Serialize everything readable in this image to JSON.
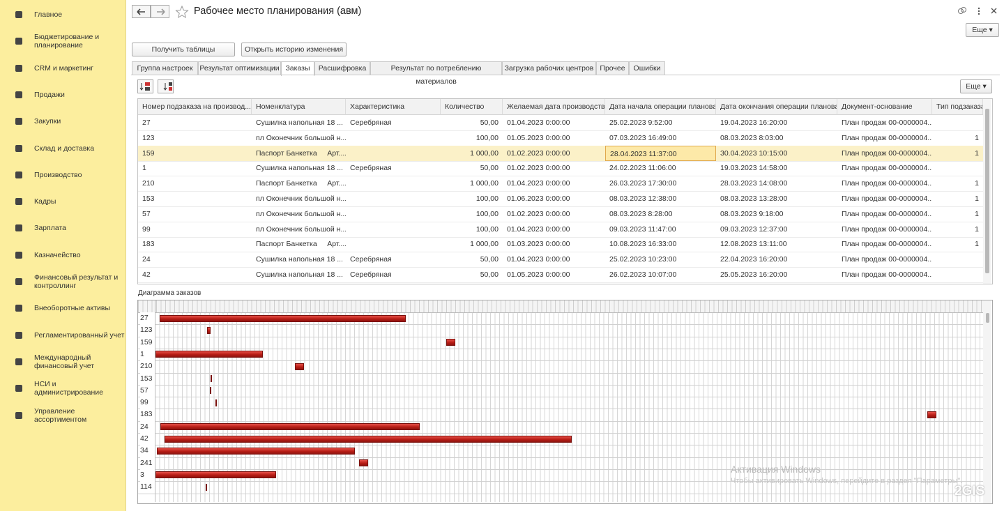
{
  "sidebar": {
    "items": [
      "Главное",
      "Бюджетирование и\nпланирование",
      "CRM и маркетинг",
      "Продажи",
      "Закупки",
      "Склад и доставка",
      "Производство",
      "Кадры",
      "Зарплата",
      "Казначейство",
      "Финансовый результат и\nконтроллинг",
      "Внеоборотные активы",
      "Регламентированный учет",
      "Международный\nфинансовый учет",
      "НСИ и\nадминистрирование",
      "Управление\nассортиментом"
    ]
  },
  "header": {
    "title": "Рабочее место планирования (авм)",
    "more": "Еще"
  },
  "toolbar": {
    "buttons": [
      "Получить таблицы",
      "Открыть историю изменения"
    ]
  },
  "tabs": {
    "items": [
      "Группа настроек",
      "Результат оптимизации",
      "Заказы",
      "Расшифровка",
      "Результат по потреблению материалов",
      "Загрузка рабочих центров",
      "Прочее",
      "Ошибки"
    ],
    "active": 2
  },
  "table": {
    "more": "Еще",
    "columns": [
      "Номер подзаказа на производ...",
      "Номенклатура",
      "Характеристика",
      "Количество",
      "Желаемая дата производства",
      "Дата начала операции плановая",
      "Дата окончания операции плановая",
      "Документ-основание",
      "Тип подзаказа"
    ],
    "selected_row": 2,
    "rows": [
      [
        "27",
        "Сушилка напольная 18 ...",
        "Серебряная",
        "50,00",
        "01.04.2023 0:00:00",
        "25.02.2023 9:52:00",
        "19.04.2023 16:20:00",
        "План продаж 00-0000004...",
        null
      ],
      [
        "123",
        "пл Оконечник большой н...",
        null,
        "100,00",
        "01.05.2023 0:00:00",
        "07.03.2023 16:49:00",
        "08.03.2023 8:03:00",
        "План продаж 00-0000004...",
        "1"
      ],
      [
        "159",
        "Паспорт Банкетка     Арт....",
        null,
        "1 000,00",
        "01.02.2023 0:00:00",
        "28.04.2023 11:37:00",
        "30.04.2023 10:15:00",
        "План продаж 00-0000004...",
        "1"
      ],
      [
        "1",
        "Сушилка напольная 18 ...",
        "Серебряная",
        "50,00",
        "01.02.2023 0:00:00",
        "24.02.2023 11:06:00",
        "19.03.2023 14:58:00",
        "План продаж 00-0000004...",
        null
      ],
      [
        "210",
        "Паспорт Банкетка     Арт....",
        null,
        "1 000,00",
        "01.04.2023 0:00:00",
        "26.03.2023 17:30:00",
        "28.03.2023 14:08:00",
        "План продаж 00-0000004...",
        "1"
      ],
      [
        "153",
        "пл Оконечник большой н...",
        null,
        "100,00",
        "01.06.2023 0:00:00",
        "08.03.2023 12:38:00",
        "08.03.2023 13:28:00",
        "План продаж 00-0000004...",
        "1"
      ],
      [
        "57",
        "пл Оконечник большой н...",
        null,
        "100,00",
        "01.02.2023 0:00:00",
        "08.03.2023 8:28:00",
        "08.03.2023 9:18:00",
        "План продаж 00-0000004...",
        "1"
      ],
      [
        "99",
        "пл Оконечник большой н...",
        null,
        "100,00",
        "01.04.2023 0:00:00",
        "09.03.2023 11:47:00",
        "09.03.2023 12:37:00",
        "План продаж 00-0000004...",
        "1"
      ],
      [
        "183",
        "Паспорт Банкетка     Арт....",
        null,
        "1 000,00",
        "01.03.2023 0:00:00",
        "10.08.2023 16:33:00",
        "12.08.2023 13:11:00",
        "План продаж 00-0000004...",
        "1"
      ],
      [
        "24",
        "Сушилка напольная 18 ...",
        "Серебряная",
        "50,00",
        "01.04.2023 0:00:00",
        "25.02.2023 10:23:00",
        "22.04.2023 16:20:00",
        "План продаж 00-0000004...",
        null
      ],
      [
        "42",
        "Сушилка напольная 18 ...",
        "Серебряная",
        "50,00",
        "01.05.2023 0:00:00",
        "26.02.2023 10:07:00",
        "25.05.2023 16:20:00",
        "План продаж 00-0000004...",
        null
      ]
    ]
  },
  "diagram": {
    "title": "Диаграмма заказов",
    "rows": [
      "27",
      "123",
      "159",
      "1",
      "210",
      "153",
      "57",
      "99",
      "183",
      "24",
      "42",
      "34",
      "241",
      "3",
      "114"
    ]
  },
  "watermark": {
    "title": "Активация Windows",
    "text": "Чтобы активировать Windows, перейдите в раздел \"Параметры\".",
    "brand": "2GIS"
  }
}
